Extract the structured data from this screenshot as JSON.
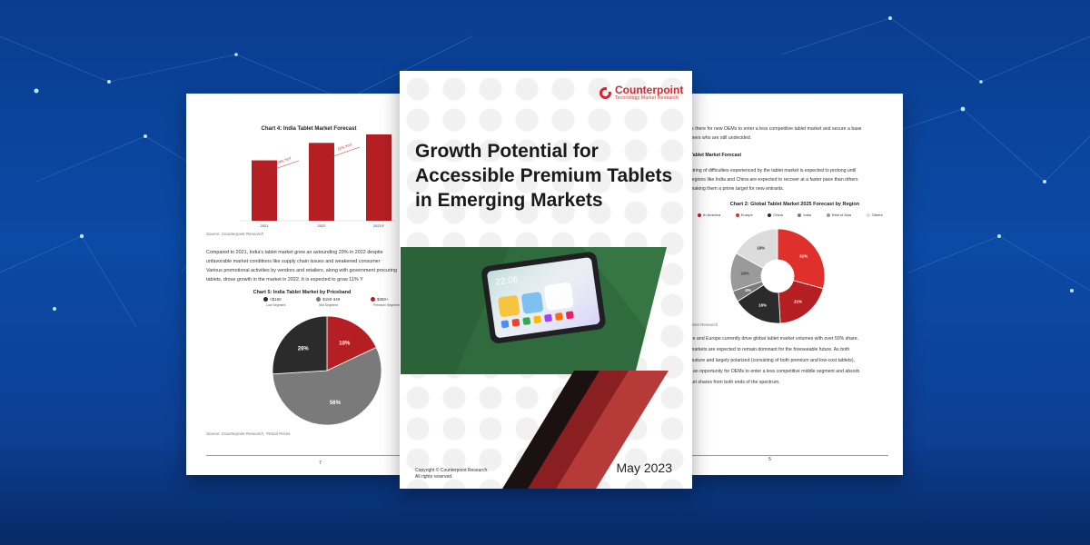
{
  "left_page": {
    "chart4": {
      "title": "Chart 4: India Tablet Market Forecast",
      "categories": [
        "2021",
        "2022",
        "2023 F"
      ],
      "growth_labels": [
        "29% YoY",
        "11% YoY"
      ],
      "source": "Source: Counterpoint Research"
    },
    "paragraph": "Compared to 2021, India's tablet market grew an astounding 29% in 2022 despite unfavorable market conditions like supply chain issues and weakened consumer Various promotional activities by vendors and retailers, along with government procuring tablets, drove growth in the market in 2022. It is expected to grow 11% Y",
    "chart5": {
      "title": "Chart 5: India Tablet Market by Priceband",
      "legend": [
        {
          "label": "<$150",
          "sub": "Low Segment",
          "color": "#2b2b2b"
        },
        {
          "label": "$150-349",
          "sub": "Mid Segment",
          "color": "#7a7a7a"
        },
        {
          "label": "$350+",
          "sub": "Premium Segment",
          "color": "#b51f24"
        }
      ],
      "source": "Source: Counterpoint Research, *Retail Prices"
    },
    "page_number": "7"
  },
  "cover": {
    "brand_name": "Counterpoint",
    "brand_tagline": "Technology Market Research",
    "title_line1": "Growth Potential for",
    "title_line2": "Accessible Premium Tablets",
    "title_line3": "in Emerging Markets",
    "copyright_line1": "Copyright © Counterpoint Research.",
    "copyright_line2": "All rights reserved.",
    "date": "May 2023",
    "tablet_clock": "22:06"
  },
  "right_page": {
    "line1": "is there for new OEMs to enter a less competitive tablet market and secure a base",
    "line2": "mers who are still undecided.",
    "heading": "Tablet Market Forecast",
    "para1_l1": "string of difficulties experienced by the tablet market is expected to prolong until",
    "para1_l2": "regions like India and China are expected to recover at a faster pace than others",
    "para1_l3": "making them a prime target for new entrants.",
    "chart2": {
      "title": "Chart 2: Global Tablet Market 2025 Forecast by Region",
      "legend": [
        {
          "label": "th America",
          "color": "#b51f24"
        },
        {
          "label": "Europe",
          "color": "#e0302b"
        },
        {
          "label": "China",
          "color": "#2b2b2b"
        },
        {
          "label": "India",
          "color": "#7a7a7a"
        },
        {
          "label": "Rest of Asia",
          "color": "#9a9a9a"
        },
        {
          "label": "Others",
          "color": "#dcdcdc"
        }
      ],
      "source": "point Research"
    },
    "para2_l1": "ce and Europe currently drive global tablet market volumes with over 50% share.",
    "para2_l2": "markets are expected to remain dominant for the foreseeable future. As both",
    "para2_l3": "mature and largely polarized (consisting of both premium and low-cost tablets),",
    "para2_l4": "t an opportunity for OEMs to enter a less competitive middle segment and absorb",
    "para2_l5": "ket shares from both ends of the spectrum.",
    "page_number": "5"
  },
  "chart_data": [
    {
      "type": "bar",
      "title": "Chart 4: India Tablet Market Forecast",
      "categories": [
        "2021",
        "2022",
        "2023 F"
      ],
      "values": [
        100,
        129,
        143
      ],
      "annotations": [
        "29% YoY",
        "11% YoY"
      ],
      "color": "#b51f24"
    },
    {
      "type": "pie",
      "title": "Chart 5: India Tablet Market by Priceband",
      "labels": [
        "$350+",
        "$150-349",
        "<$150"
      ],
      "values": [
        18,
        56,
        26
      ],
      "value_labels": [
        "18%",
        "56%",
        "26%"
      ],
      "colors": [
        "#b51f24",
        "#7a7a7a",
        "#2b2b2b"
      ]
    },
    {
      "type": "pie",
      "title": "Chart 2: Global Tablet Market 2025 Forecast by Region",
      "labels": [
        "Europe",
        "th America",
        "China",
        "India",
        "Rest of Asia",
        "Others"
      ],
      "values": [
        31,
        21,
        18,
        4,
        14,
        18
      ],
      "value_labels": [
        "31%",
        "21%",
        "18%",
        "4%",
        "14%",
        "18%"
      ],
      "colors": [
        "#e0302b",
        "#b51f24",
        "#2b2b2b",
        "#7a7a7a",
        "#9a9a9a",
        "#dcdcdc"
      ],
      "donut": true
    }
  ]
}
